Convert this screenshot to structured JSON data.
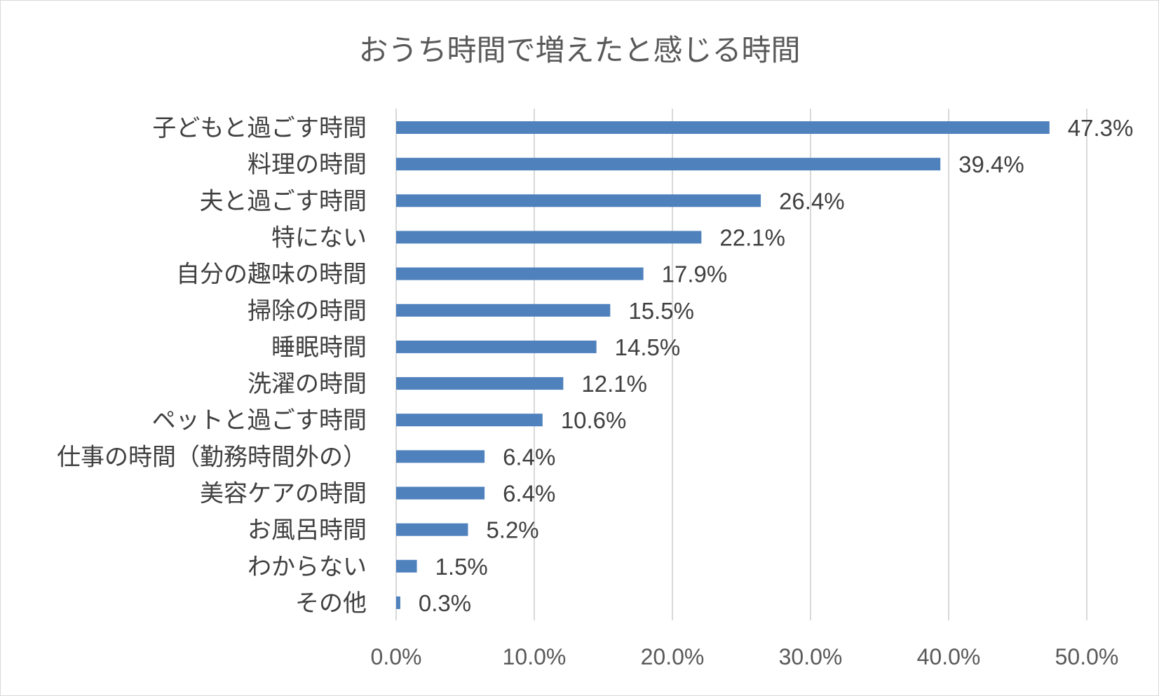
{
  "chart_data": {
    "type": "bar",
    "orientation": "horizontal",
    "title": "おうち時間で増えたと感じる時間",
    "categories": [
      "子どもと過ごす時間",
      "料理の時間",
      "夫と過ごす時間",
      "特にない",
      "自分の趣味の時間",
      "掃除の時間",
      "睡眠時間",
      "洗濯の時間",
      "ペットと過ごす時間",
      "仕事の時間（勤務時間外の）",
      "美容ケアの時間",
      "お風呂時間",
      "わからない",
      "その他"
    ],
    "values": [
      47.3,
      39.4,
      26.4,
      22.1,
      17.9,
      15.5,
      14.5,
      12.1,
      10.6,
      6.4,
      6.4,
      5.2,
      1.5,
      0.3
    ],
    "value_labels": [
      "47.3%",
      "39.4%",
      "26.4%",
      "22.1%",
      "17.9%",
      "15.5%",
      "14.5%",
      "12.1%",
      "10.6%",
      "6.4%",
      "6.4%",
      "5.2%",
      "1.5%",
      "0.3%"
    ],
    "x_ticks": [
      "0.0%",
      "10.0%",
      "20.0%",
      "30.0%",
      "40.0%",
      "50.0%"
    ],
    "xlim": [
      0,
      50
    ],
    "grid": true,
    "legend": "none",
    "bar_color": "#4f81bd",
    "grid_color": "#d9d9d9"
  }
}
